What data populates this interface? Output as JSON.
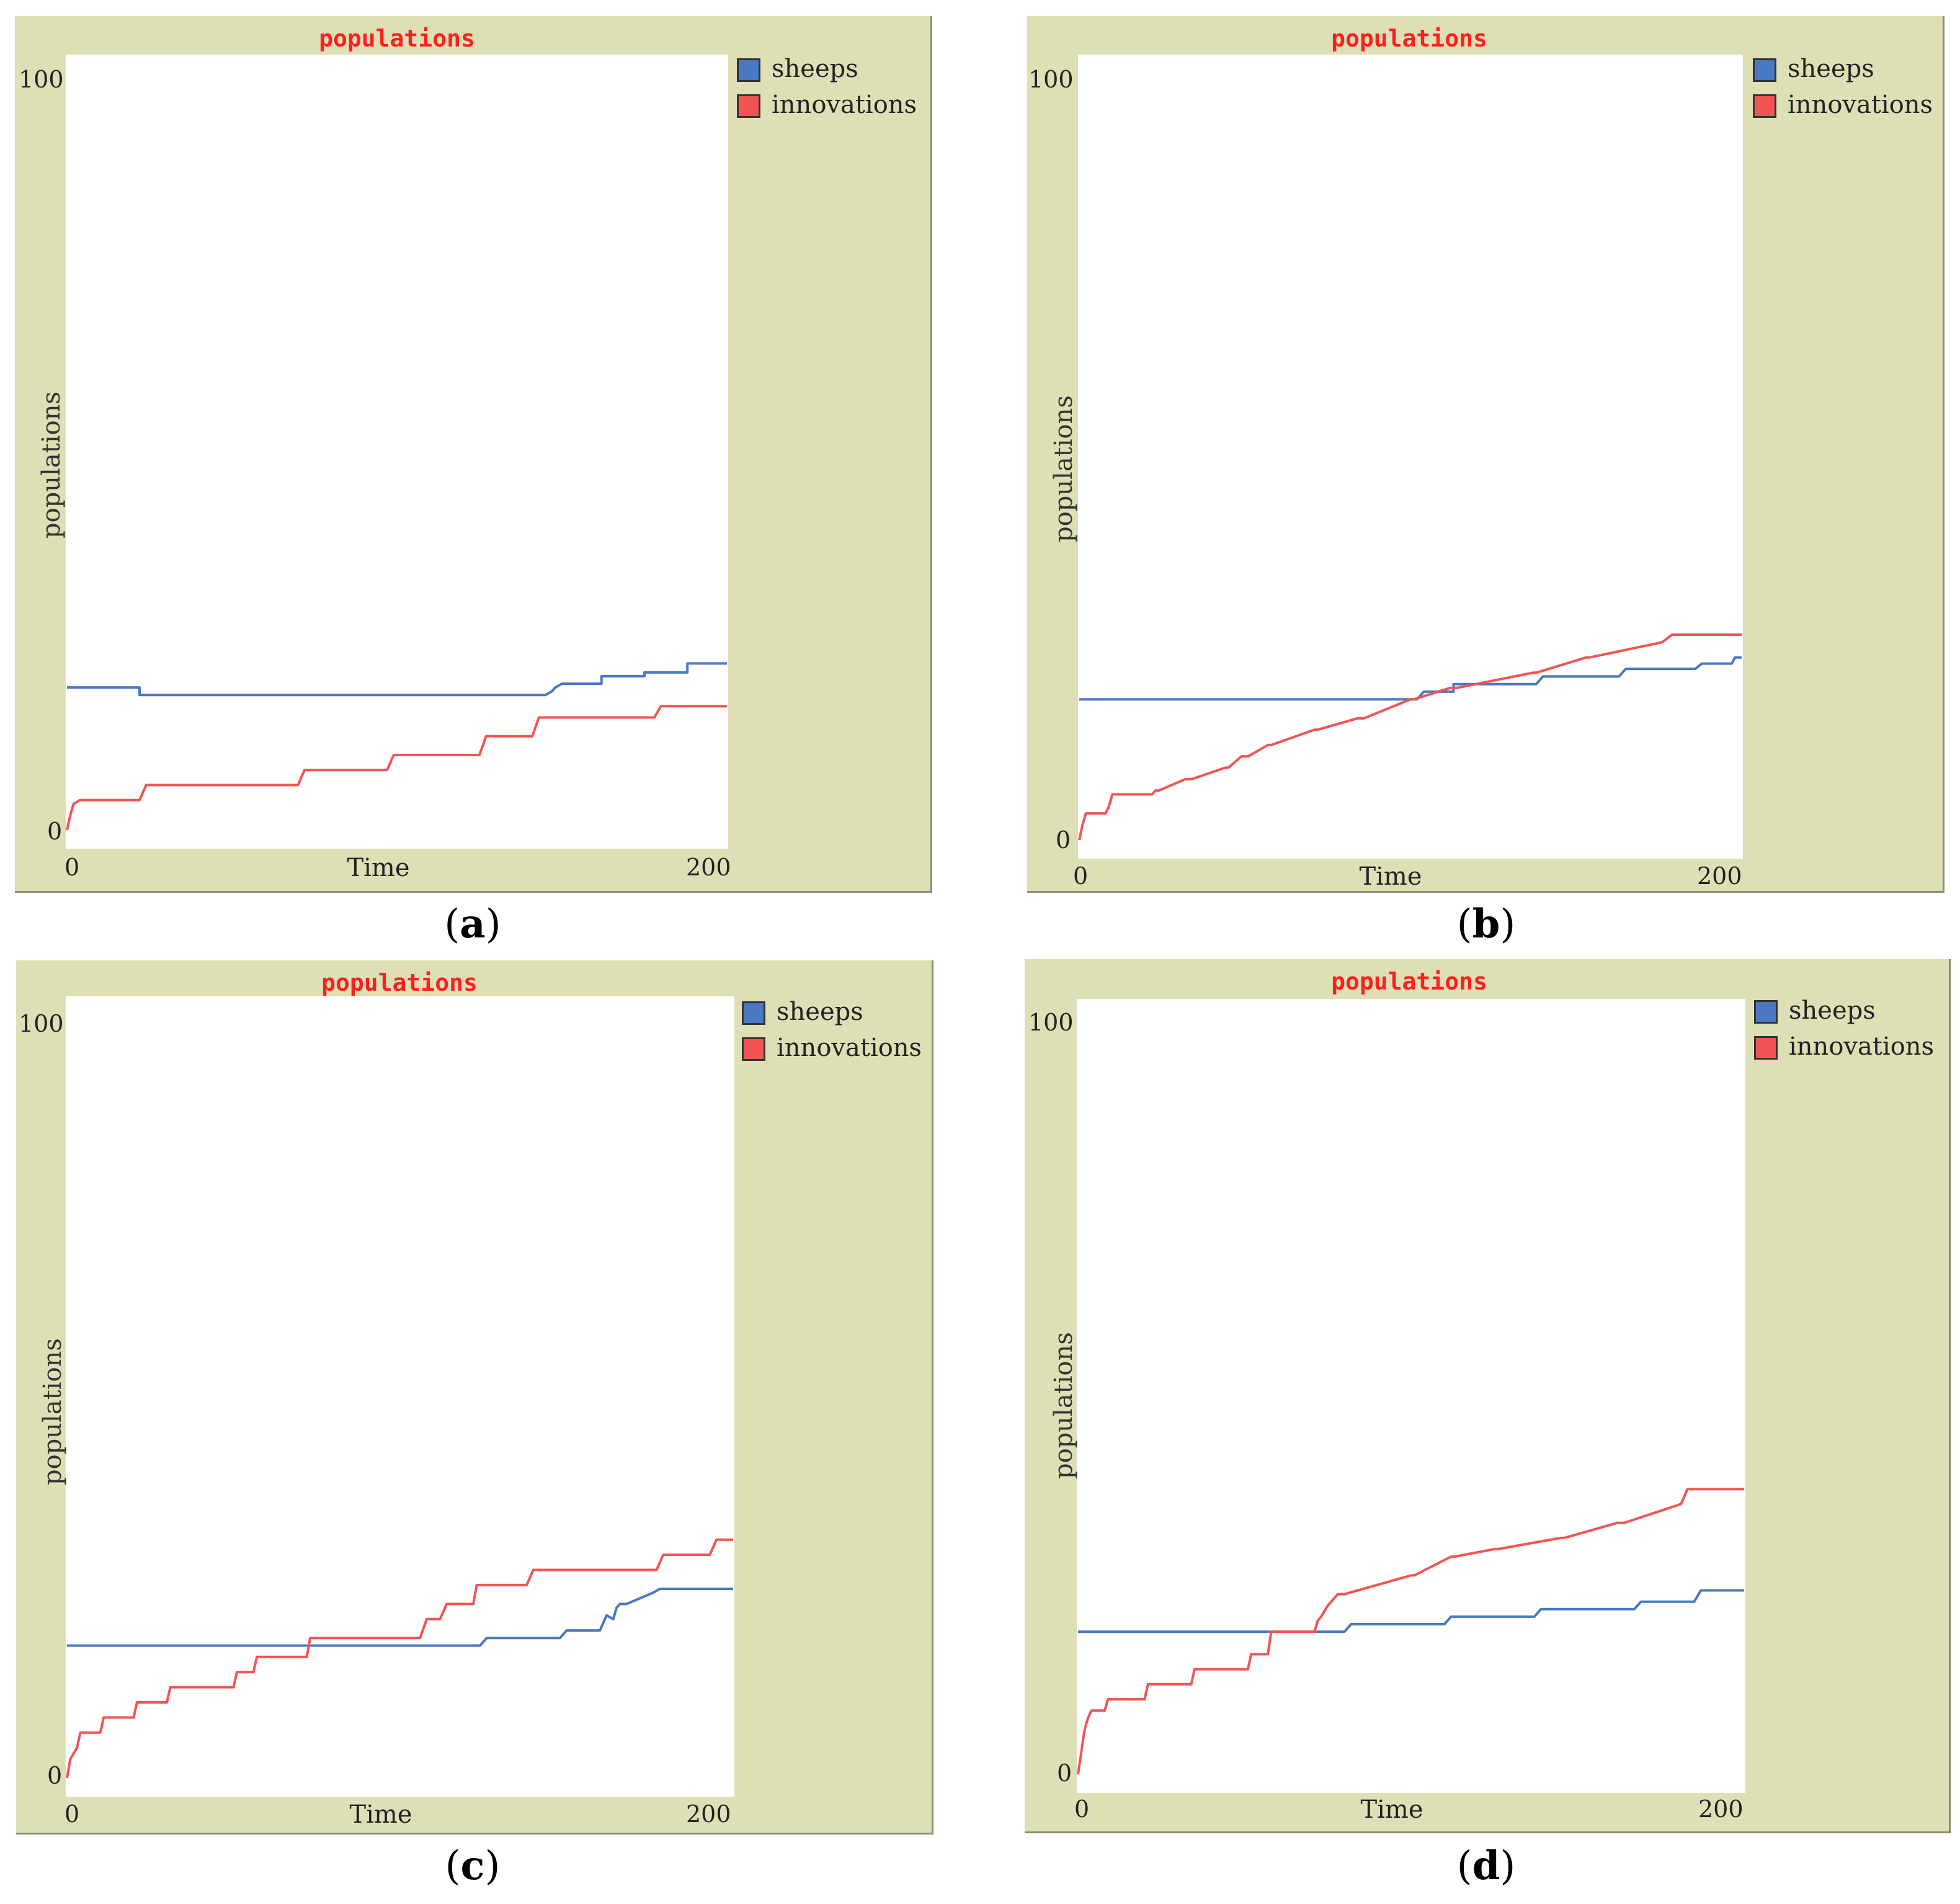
{
  "colors": {
    "panel_bg": "#dfdfb6",
    "title": "#ff1f1f",
    "sheeps": "#4a78c2",
    "innovations": "#f25454"
  },
  "chart_data": [
    {
      "type": "line",
      "panel": "a",
      "caption": {
        "open": "(",
        "letter": "a",
        "close": ")"
      },
      "title": "populations",
      "xlabel": "Time",
      "ylabel": "populations",
      "xlim": [
        0,
        200
      ],
      "ylim": [
        0,
        100
      ],
      "xtick_labels": [
        "0",
        "200"
      ],
      "ytick_labels": [
        "0",
        "100"
      ],
      "legend": [
        "sheeps",
        "innovations"
      ],
      "series": [
        {
          "name": "sheeps",
          "color": "#4a78c2",
          "x": [
            0,
            22,
            22,
            145,
            147,
            148,
            150,
            162,
            162,
            175,
            175,
            188,
            188,
            200
          ],
          "y": [
            19,
            19,
            18,
            18,
            18.5,
            19,
            19.5,
            19.5,
            20.5,
            20.5,
            21,
            21,
            22.2,
            22.2
          ]
        },
        {
          "name": "innovations",
          "color": "#f25454",
          "x": [
            0,
            1,
            2,
            4,
            22,
            24,
            70,
            72,
            97,
            99,
            125,
            127,
            141,
            143,
            178,
            180,
            200
          ],
          "y": [
            0,
            2,
            3.5,
            4,
            4,
            6,
            6,
            8,
            8,
            10,
            10,
            12.5,
            12.5,
            15,
            15,
            16.5,
            16.5
          ]
        }
      ]
    },
    {
      "type": "line",
      "panel": "b",
      "caption": {
        "open": "(",
        "letter": "b",
        "close": ")"
      },
      "title": "populations",
      "xlabel": "Time",
      "ylabel": "populations",
      "xlim": [
        0,
        200
      ],
      "ylim": [
        0,
        100
      ],
      "xtick_labels": [
        "0",
        "200"
      ],
      "ytick_labels": [
        "0",
        "100"
      ],
      "legend": [
        "sheeps",
        "innovations"
      ],
      "series": [
        {
          "name": "sheeps",
          "color": "#4a78c2",
          "x": [
            0,
            102,
            104,
            113,
            113,
            138,
            140,
            163,
            165,
            186,
            188,
            197,
            198,
            200
          ],
          "y": [
            18.5,
            18.5,
            19.5,
            19.5,
            20.5,
            20.5,
            21.5,
            21.5,
            22.5,
            22.5,
            23.2,
            23.2,
            24,
            24
          ]
        },
        {
          "name": "innovations",
          "color": "#f25454",
          "x": [
            0,
            1,
            2,
            8,
            9,
            10,
            22,
            23,
            24,
            32,
            34,
            44,
            45,
            49,
            51,
            57,
            58,
            71,
            72,
            84,
            86,
            100,
            101,
            112,
            114,
            137,
            138,
            153,
            154,
            176,
            179,
            200
          ],
          "y": [
            0,
            2,
            3.5,
            3.5,
            4.5,
            6,
            6,
            6.5,
            6.5,
            8,
            8,
            9.5,
            9.5,
            11,
            11,
            12.5,
            12.5,
            14.5,
            14.5,
            16,
            16,
            18.5,
            18.5,
            20,
            20,
            22,
            22,
            24,
            24,
            26,
            27,
            27
          ]
        }
      ]
    },
    {
      "type": "line",
      "panel": "c",
      "caption": {
        "open": "(",
        "letter": "c",
        "close": ")"
      },
      "title": "populations",
      "xlabel": "Time",
      "ylabel": "populations",
      "xlim": [
        0,
        200
      ],
      "ylim": [
        0,
        100
      ],
      "xtick_labels": [
        "0",
        "200"
      ],
      "ytick_labels": [
        "0",
        "100"
      ],
      "legend": [
        "sheeps",
        "innovations"
      ],
      "series": [
        {
          "name": "sheeps",
          "color": "#4a78c2",
          "x": [
            0,
            124,
            126,
            148,
            150,
            160,
            161,
            162,
            164,
            165,
            166,
            168,
            176,
            178,
            200
          ],
          "y": [
            17.5,
            17.5,
            18.5,
            18.5,
            19.5,
            19.5,
            20.5,
            21.5,
            21,
            22.5,
            23,
            23,
            24.5,
            25,
            25
          ]
        },
        {
          "name": "innovations",
          "color": "#f25454",
          "x": [
            0,
            1,
            3,
            4,
            10,
            11,
            20,
            21,
            30,
            31,
            50,
            51,
            56,
            57,
            72,
            73,
            106,
            108,
            112,
            114,
            122,
            123,
            138,
            140,
            177,
            179,
            193,
            195,
            200
          ],
          "y": [
            0,
            2.5,
            4,
            6,
            6,
            8,
            8,
            10,
            10,
            12,
            12,
            14,
            14,
            16,
            16,
            18.5,
            18.5,
            21,
            21,
            23,
            23,
            25.5,
            25.5,
            27.5,
            27.5,
            29.5,
            29.5,
            31.5,
            31.5
          ]
        }
      ]
    },
    {
      "type": "line",
      "panel": "d",
      "caption": {
        "open": "(",
        "letter": "d",
        "close": ")"
      },
      "title": "populations",
      "xlabel": "Time",
      "ylabel": "populations",
      "xlim": [
        0,
        200
      ],
      "ylim": [
        0,
        100
      ],
      "xtick_labels": [
        "0",
        "200"
      ],
      "ytick_labels": [
        "0",
        "100"
      ],
      "legend": [
        "sheeps",
        "innovations"
      ],
      "series": [
        {
          "name": "sheeps",
          "color": "#4a78c2",
          "x": [
            0,
            80,
            82,
            110,
            112,
            137,
            139,
            167,
            169,
            185,
            187,
            200
          ],
          "y": [
            19,
            19,
            20,
            20,
            21,
            21,
            22,
            22,
            23,
            23,
            24.5,
            24.5
          ]
        },
        {
          "name": "innovations",
          "color": "#f25454",
          "x": [
            0,
            1,
            2,
            3,
            4,
            8,
            9,
            10,
            20,
            21,
            34,
            35,
            51,
            52,
            57,
            58,
            71,
            72,
            73,
            75,
            78,
            80,
            100,
            101,
            112,
            113,
            125,
            126,
            145,
            146,
            162,
            164,
            181,
            183,
            200
          ],
          "y": [
            0,
            3,
            6,
            7.5,
            8.5,
            8.5,
            10,
            10,
            10,
            12,
            12,
            14,
            14,
            16,
            16,
            19,
            19,
            20.5,
            21,
            22.5,
            24,
            24,
            26.5,
            26.5,
            29,
            29,
            30,
            30,
            31.5,
            31.5,
            33.5,
            33.5,
            36,
            38,
            38
          ]
        }
      ]
    }
  ]
}
